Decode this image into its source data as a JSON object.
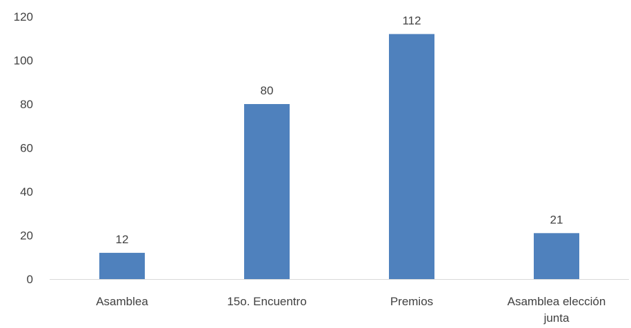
{
  "chart_data": {
    "type": "bar",
    "categories": [
      [
        "Asamblea"
      ],
      [
        "15o. Encuentro"
      ],
      [
        "Premios"
      ],
      [
        "Asamblea elección",
        "junta"
      ]
    ],
    "series": [
      {
        "values": [
          12,
          80,
          112,
          21
        ]
      }
    ],
    "yticks": [
      "0",
      "20",
      "40",
      "60",
      "80",
      "100",
      "120"
    ],
    "ylim": [
      0,
      120
    ],
    "grid": false,
    "legend": "none",
    "data_labels": true
  },
  "colors": {
    "bar": "#4f81bd",
    "axis": "#d9d9d9",
    "text": "#404040"
  }
}
